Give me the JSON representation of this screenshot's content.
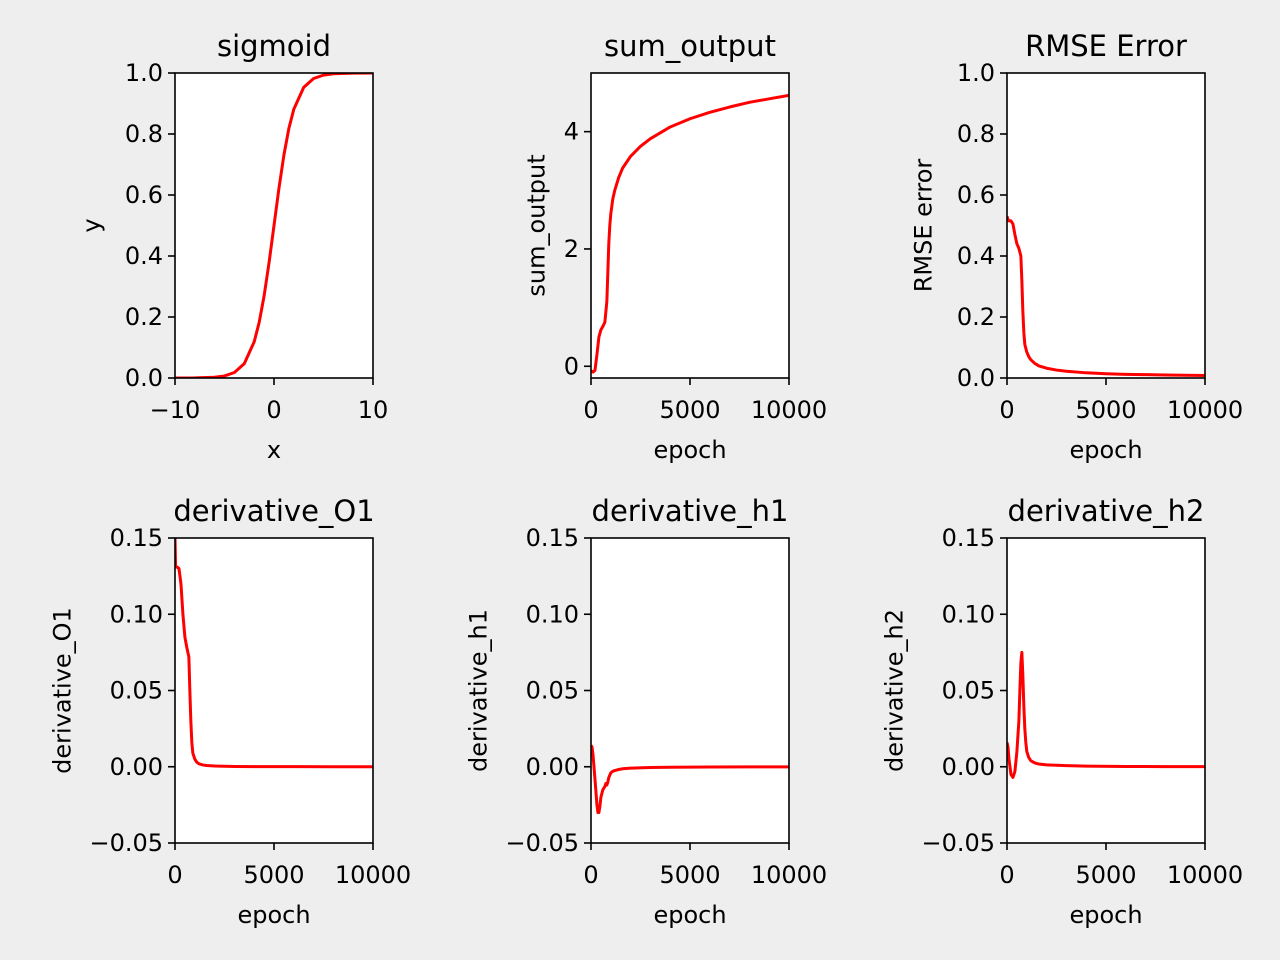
{
  "figure": {
    "background": "#eeeeee",
    "line_color": "#ff0000"
  },
  "chart_data": [
    {
      "type": "line",
      "title": "sigmoid",
      "xlabel": "x",
      "ylabel": "y",
      "xlim": [
        -10,
        10
      ],
      "ylim": [
        0,
        1
      ],
      "xticks": [
        {
          "v": -10,
          "label": "−10"
        },
        {
          "v": 0,
          "label": "0"
        },
        {
          "v": 10,
          "label": "10"
        }
      ],
      "yticks": [
        {
          "v": 0,
          "label": "0.0"
        },
        {
          "v": 0.2,
          "label": "0.2"
        },
        {
          "v": 0.4,
          "label": "0.4"
        },
        {
          "v": 0.6,
          "label": "0.6"
        },
        {
          "v": 0.8,
          "label": "0.8"
        },
        {
          "v": 1,
          "label": "1.0"
        }
      ],
      "series": [
        {
          "name": "sigmoid",
          "x": [
            -10,
            -8,
            -6,
            -5,
            -4,
            -3,
            -2,
            -1.5,
            -1,
            -0.5,
            0,
            0.5,
            1,
            1.5,
            2,
            3,
            4,
            5,
            6,
            8,
            10
          ],
          "y": [
            5e-05,
            0.0003,
            0.0025,
            0.0067,
            0.018,
            0.047,
            0.119,
            0.182,
            0.269,
            0.378,
            0.5,
            0.622,
            0.731,
            0.818,
            0.881,
            0.953,
            0.982,
            0.993,
            0.9975,
            0.9997,
            0.99995
          ]
        }
      ]
    },
    {
      "type": "line",
      "title": "sum_output",
      "xlabel": "epoch",
      "ylabel": "sum_output",
      "xlim": [
        0,
        10000
      ],
      "ylim": [
        -0.2,
        5
      ],
      "xticks": [
        {
          "v": 0,
          "label": "0"
        },
        {
          "v": 5000,
          "label": "5000"
        },
        {
          "v": 10000,
          "label": "10000"
        }
      ],
      "yticks": [
        {
          "v": 0,
          "label": "0"
        },
        {
          "v": 2,
          "label": "2"
        },
        {
          "v": 4,
          "label": "4"
        }
      ],
      "series": [
        {
          "name": "sum_output",
          "x": [
            0,
            100,
            200,
            300,
            400,
            500,
            600,
            700,
            800,
            850,
            900,
            950,
            1000,
            1100,
            1200,
            1400,
            1600,
            2000,
            2500,
            3000,
            4000,
            5000,
            6000,
            7000,
            8000,
            9000,
            10000
          ],
          "y": [
            -0.08,
            -0.1,
            -0.07,
            0.2,
            0.5,
            0.62,
            0.68,
            0.75,
            1.1,
            1.6,
            2.1,
            2.4,
            2.6,
            2.85,
            3.0,
            3.22,
            3.38,
            3.58,
            3.75,
            3.88,
            4.08,
            4.22,
            4.33,
            4.42,
            4.5,
            4.56,
            4.62
          ]
        }
      ]
    },
    {
      "type": "line",
      "title": "RMSE Error",
      "xlabel": "epoch",
      "ylabel": "RMSE error",
      "xlim": [
        0,
        10000
      ],
      "ylim": [
        0,
        1
      ],
      "xticks": [
        {
          "v": 0,
          "label": "0"
        },
        {
          "v": 5000,
          "label": "5000"
        },
        {
          "v": 10000,
          "label": "10000"
        }
      ],
      "yticks": [
        {
          "v": 0,
          "label": "0.0"
        },
        {
          "v": 0.2,
          "label": "0.2"
        },
        {
          "v": 0.4,
          "label": "0.4"
        },
        {
          "v": 0.6,
          "label": "0.6"
        },
        {
          "v": 0.8,
          "label": "0.8"
        },
        {
          "v": 1,
          "label": "1.0"
        }
      ],
      "series": [
        {
          "name": "RMSE error",
          "x": [
            0,
            50,
            100,
            200,
            300,
            400,
            500,
            600,
            700,
            750,
            800,
            850,
            900,
            1000,
            1100,
            1200,
            1400,
            1600,
            2000,
            2500,
            3000,
            4000,
            5000,
            6000,
            7000,
            8000,
            9000,
            10000
          ],
          "y": [
            0.53,
            0.52,
            0.515,
            0.515,
            0.505,
            0.47,
            0.44,
            0.425,
            0.4,
            0.32,
            0.22,
            0.15,
            0.11,
            0.085,
            0.07,
            0.06,
            0.048,
            0.04,
            0.032,
            0.026,
            0.022,
            0.017,
            0.014,
            0.012,
            0.011,
            0.01,
            0.009,
            0.008
          ]
        }
      ]
    },
    {
      "type": "line",
      "title": "derivative_O1",
      "xlabel": "epoch",
      "ylabel": "derivative_O1",
      "xlim": [
        0,
        10000
      ],
      "ylim": [
        -0.05,
        0.15
      ],
      "xticks": [
        {
          "v": 0,
          "label": "0"
        },
        {
          "v": 5000,
          "label": "5000"
        },
        {
          "v": 10000,
          "label": "10000"
        }
      ],
      "yticks": [
        {
          "v": -0.05,
          "label": "−0.05"
        },
        {
          "v": 0,
          "label": "0.00"
        },
        {
          "v": 0.05,
          "label": "0.05"
        },
        {
          "v": 0.1,
          "label": "0.10"
        },
        {
          "v": 0.15,
          "label": "0.15"
        }
      ],
      "series": [
        {
          "name": "derivative_O1",
          "x": [
            0,
            30,
            100,
            200,
            300,
            400,
            500,
            600,
            700,
            750,
            800,
            850,
            900,
            1000,
            1100,
            1200,
            1400,
            1600,
            2000,
            3000,
            4000,
            6000,
            8000,
            10000
          ],
          "y": [
            0.15,
            0.131,
            0.131,
            0.13,
            0.12,
            0.1,
            0.085,
            0.078,
            0.072,
            0.05,
            0.03,
            0.016,
            0.009,
            0.005,
            0.003,
            0.002,
            0.0012,
            0.0008,
            0.0005,
            0.0002,
            0.0001,
            5e-05,
            2e-05,
            1e-05
          ]
        }
      ]
    },
    {
      "type": "line",
      "title": "derivative_h1",
      "xlabel": "epoch",
      "ylabel": "derivative_h1",
      "xlim": [
        0,
        10000
      ],
      "ylim": [
        -0.05,
        0.15
      ],
      "xticks": [
        {
          "v": 0,
          "label": "0"
        },
        {
          "v": 5000,
          "label": "5000"
        },
        {
          "v": 10000,
          "label": "10000"
        }
      ],
      "yticks": [
        {
          "v": -0.05,
          "label": "−0.05"
        },
        {
          "v": 0,
          "label": "0.00"
        },
        {
          "v": 0.05,
          "label": "0.05"
        },
        {
          "v": 0.1,
          "label": "0.10"
        },
        {
          "v": 0.15,
          "label": "0.15"
        }
      ],
      "series": [
        {
          "name": "derivative_h1",
          "x": [
            0,
            50,
            100,
            200,
            300,
            350,
            400,
            450,
            500,
            600,
            700,
            750,
            800,
            850,
            900,
            1000,
            1100,
            1200,
            1400,
            1600,
            2000,
            3000,
            4000,
            6000,
            8000,
            10000
          ],
          "y": [
            0.014,
            0.013,
            0.008,
            -0.008,
            -0.025,
            -0.03,
            -0.03,
            -0.026,
            -0.02,
            -0.015,
            -0.013,
            -0.011,
            -0.012,
            -0.01,
            -0.007,
            -0.004,
            -0.003,
            -0.0025,
            -0.0018,
            -0.0013,
            -0.0009,
            -0.0005,
            -0.0003,
            -0.0002,
            -0.0001,
            -5e-05
          ]
        }
      ]
    },
    {
      "type": "line",
      "title": "derivative_h2",
      "xlabel": "epoch",
      "ylabel": "derivative_h2",
      "xlim": [
        0,
        10000
      ],
      "ylim": [
        -0.05,
        0.15
      ],
      "xticks": [
        {
          "v": 0,
          "label": "0"
        },
        {
          "v": 5000,
          "label": "5000"
        },
        {
          "v": 10000,
          "label": "10000"
        }
      ],
      "yticks": [
        {
          "v": -0.05,
          "label": "−0.05"
        },
        {
          "v": 0,
          "label": "0.00"
        },
        {
          "v": 0.05,
          "label": "0.05"
        },
        {
          "v": 0.1,
          "label": "0.10"
        },
        {
          "v": 0.15,
          "label": "0.15"
        }
      ],
      "series": [
        {
          "name": "derivative_h2",
          "x": [
            0,
            50,
            100,
            200,
            300,
            400,
            500,
            600,
            650,
            700,
            750,
            800,
            850,
            900,
            950,
            1000,
            1100,
            1200,
            1400,
            1600,
            2000,
            3000,
            4000,
            6000,
            8000,
            10000
          ],
          "y": [
            0.016,
            0.013,
            0.005,
            -0.005,
            -0.007,
            -0.003,
            0.01,
            0.03,
            0.05,
            0.068,
            0.075,
            0.06,
            0.04,
            0.025,
            0.016,
            0.01,
            0.006,
            0.004,
            0.0025,
            0.0018,
            0.0012,
            0.0007,
            0.0004,
            0.0002,
            0.0001,
            5e-05
          ]
        }
      ]
    }
  ]
}
